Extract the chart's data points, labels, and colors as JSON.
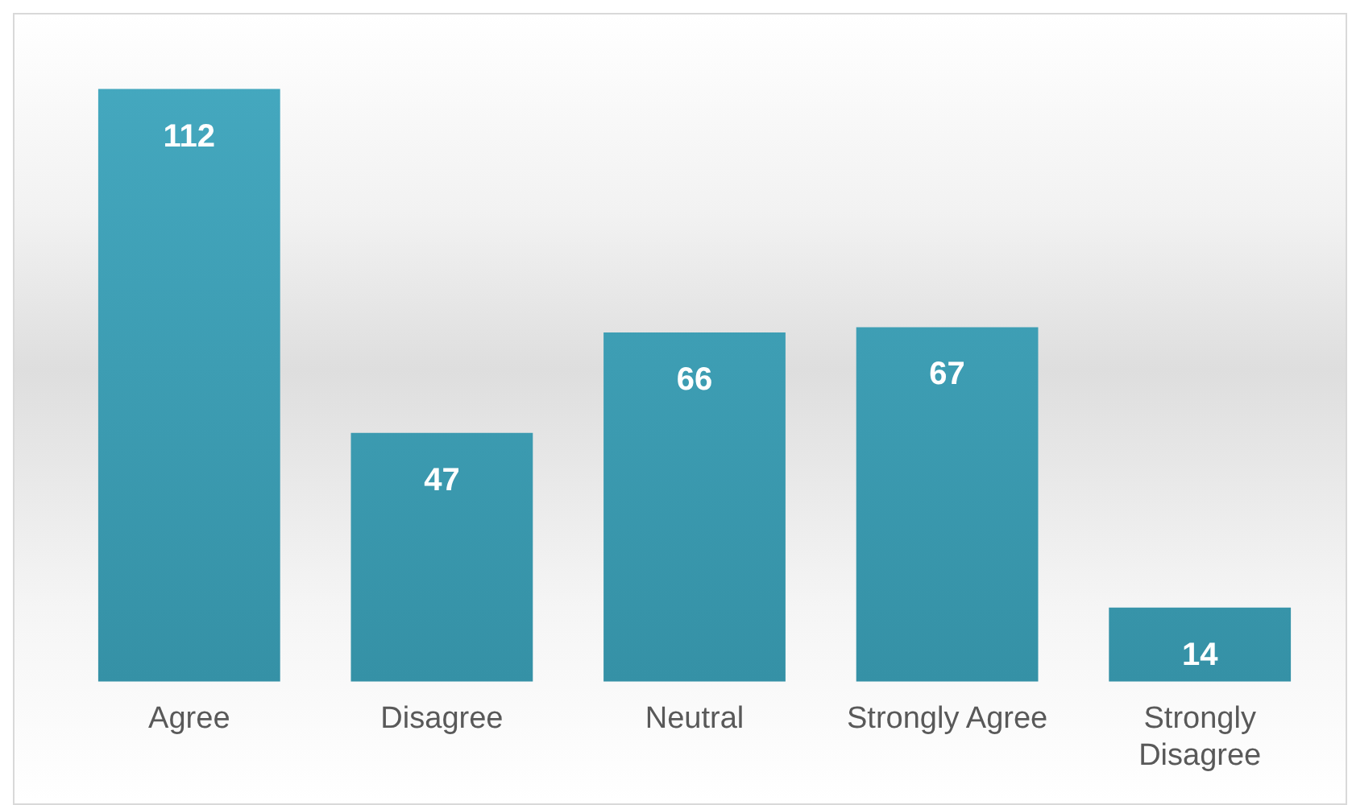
{
  "chart_data": {
    "type": "bar",
    "categories": [
      "Agree",
      "Disagree",
      "Neutral",
      "Strongly Agree",
      "Strongly Disagree"
    ],
    "values": [
      112,
      47,
      66,
      67,
      14
    ],
    "color": "#45a9c0",
    "data_labels": true,
    "grid": false,
    "legend": false
  }
}
